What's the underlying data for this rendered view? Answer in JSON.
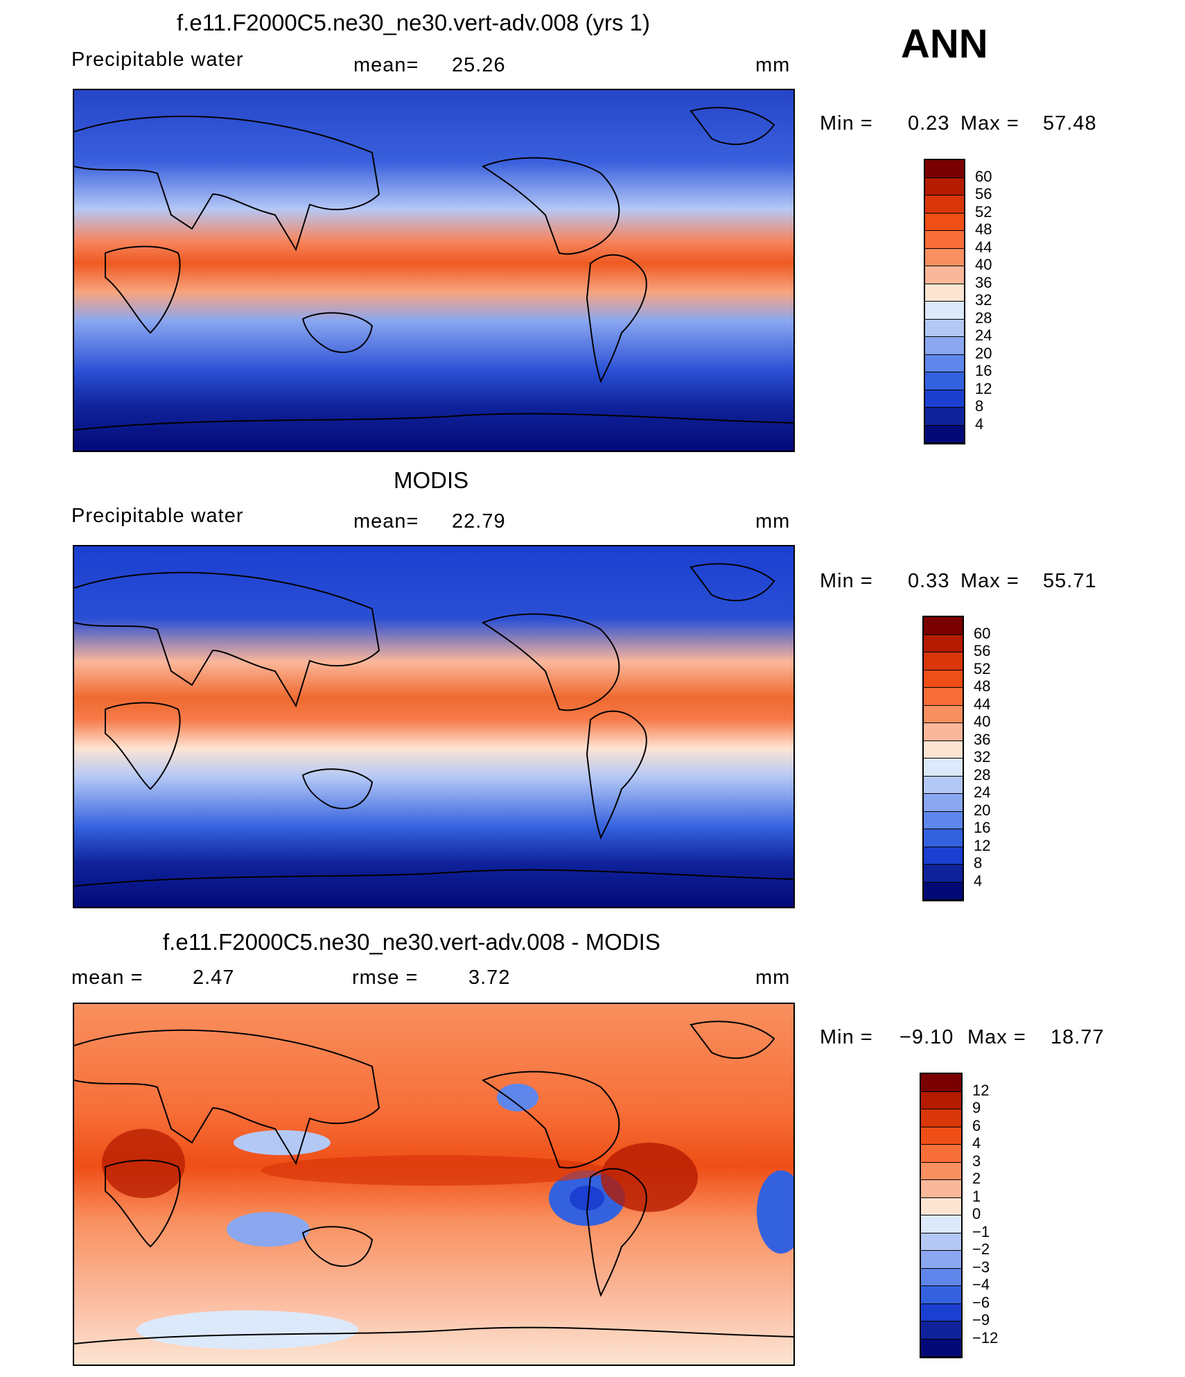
{
  "season": "ANN",
  "chart_data": [
    {
      "type": "heatmap",
      "title": "f.e11.F2000C5.ne30_ne30.vert-adv.008 (yrs 1)",
      "variable": "Precipitable water",
      "stat_label": "mean=",
      "stat_value": "25.26",
      "units": "mm",
      "min_label": "Min =",
      "min_value": "0.23",
      "max_label": "Max =",
      "max_value": "57.48",
      "colorbar_levels": [
        "60",
        "56",
        "52",
        "48",
        "44",
        "40",
        "36",
        "32",
        "28",
        "24",
        "20",
        "16",
        "12",
        "8",
        "4"
      ],
      "colorbar_colors": [
        "#7a0000",
        "#b51b00",
        "#d9360a",
        "#ef4e16",
        "#f76e38",
        "#f9905f",
        "#fbb79a",
        "#fde4d2",
        "#dce9fb",
        "#b4c8f6",
        "#8aa7f0",
        "#5f86ea",
        "#3461de",
        "#1b3fd0",
        "#0f229a",
        "#030a78"
      ]
    },
    {
      "type": "heatmap",
      "title": "MODIS",
      "variable": "Precipitable water",
      "stat_label": "mean=",
      "stat_value": "22.79",
      "units": "mm",
      "min_label": "Min =",
      "min_value": "0.33",
      "max_label": "Max =",
      "max_value": "55.71",
      "colorbar_levels": [
        "60",
        "56",
        "52",
        "48",
        "44",
        "40",
        "36",
        "32",
        "28",
        "24",
        "20",
        "16",
        "12",
        "8",
        "4"
      ],
      "colorbar_colors": [
        "#7a0000",
        "#b51b00",
        "#d9360a",
        "#ef4e16",
        "#f76e38",
        "#f9905f",
        "#fbb79a",
        "#fde4d2",
        "#dce9fb",
        "#b4c8f6",
        "#8aa7f0",
        "#5f86ea",
        "#3461de",
        "#1b3fd0",
        "#0f229a",
        "#030a78"
      ]
    },
    {
      "type": "heatmap",
      "title": "f.e11.F2000C5.ne30_ne30.vert-adv.008 - MODIS",
      "variable": "",
      "stat_label": "mean =",
      "stat_value": "2.47",
      "stat2_label": "rmse =",
      "stat2_value": "3.72",
      "units": "mm",
      "min_label": "Min =",
      "min_value": "−9.10",
      "max_label": "Max =",
      "max_value": "18.77",
      "colorbar_levels": [
        "12",
        "9",
        "6",
        "4",
        "3",
        "2",
        "1",
        "0",
        "−1",
        "−2",
        "−3",
        "−4",
        "−6",
        "−9",
        "−12"
      ],
      "colorbar_colors": [
        "#7a0000",
        "#b51b00",
        "#d9360a",
        "#ef4e16",
        "#f76e38",
        "#f9905f",
        "#fbb79a",
        "#fde4d2",
        "#dce9fb",
        "#b4c8f6",
        "#8aa7f0",
        "#5f86ea",
        "#3461de",
        "#1b3fd0",
        "#0f229a",
        "#030a78"
      ]
    }
  ]
}
